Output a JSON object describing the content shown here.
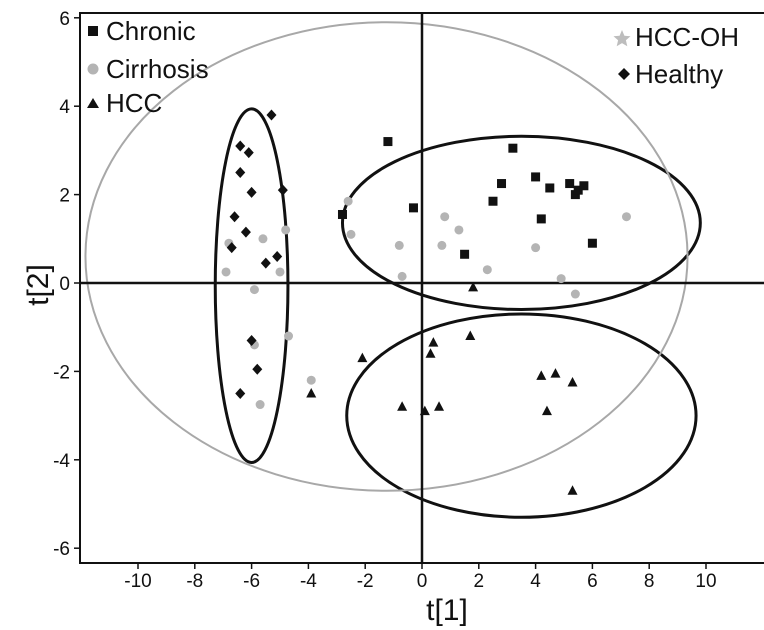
{
  "chart_data": {
    "type": "scatter",
    "title": "",
    "xlabel": "t[1]",
    "ylabel": "t[2]",
    "xlim": [
      -12,
      12
    ],
    "ylim": [
      -6.2,
      6.2
    ],
    "x_ticks": [
      -10,
      -8,
      -6,
      -4,
      -2,
      0,
      2,
      4,
      6,
      8,
      10
    ],
    "y_ticks": [
      -6,
      -4,
      -2,
      0,
      2,
      4,
      6
    ],
    "grid": false,
    "legend_left": [
      "Chronic",
      "Cirrhosis",
      "HCC"
    ],
    "legend_right": [
      "HCC-OH",
      "Healthy"
    ],
    "series": [
      {
        "name": "Chronic",
        "marker": "square",
        "color": "#111111",
        "points": [
          [
            -1.2,
            3.2
          ],
          [
            -2.8,
            1.55
          ],
          [
            -0.3,
            1.7
          ],
          [
            1.5,
            0.65
          ],
          [
            2.8,
            2.25
          ],
          [
            2.5,
            1.85
          ],
          [
            3.2,
            3.05
          ],
          [
            4.0,
            2.4
          ],
          [
            4.2,
            1.45
          ],
          [
            4.5,
            2.15
          ],
          [
            5.2,
            2.25
          ],
          [
            5.4,
            2.0
          ],
          [
            5.5,
            2.1
          ],
          [
            5.7,
            2.2
          ],
          [
            6.0,
            0.9
          ]
        ]
      },
      {
        "name": "Cirrhosis",
        "marker": "circle",
        "color": "#b4b4b4",
        "points": [
          [
            -6.8,
            0.9
          ],
          [
            -6.9,
            0.25
          ],
          [
            -5.6,
            1.0
          ],
          [
            -5.9,
            -0.15
          ],
          [
            -5.0,
            0.25
          ],
          [
            -4.8,
            1.2
          ],
          [
            -4.7,
            -1.2
          ],
          [
            -5.9,
            -1.4
          ],
          [
            -5.7,
            -2.75
          ],
          [
            -3.9,
            -2.2
          ],
          [
            -2.6,
            1.85
          ],
          [
            -2.5,
            1.1
          ],
          [
            -0.8,
            0.85
          ],
          [
            -0.7,
            0.15
          ],
          [
            0.7,
            0.85
          ],
          [
            0.8,
            1.5
          ],
          [
            1.3,
            1.2
          ],
          [
            2.3,
            0.3
          ],
          [
            4.0,
            0.8
          ],
          [
            4.9,
            0.1
          ],
          [
            5.4,
            -0.25
          ],
          [
            7.2,
            1.5
          ]
        ]
      },
      {
        "name": "HCC",
        "marker": "triangle",
        "color": "#111111",
        "points": [
          [
            -3.9,
            -2.5
          ],
          [
            -2.1,
            -1.7
          ],
          [
            -0.7,
            -2.8
          ],
          [
            0.1,
            -2.9
          ],
          [
            0.3,
            -1.6
          ],
          [
            0.4,
            -1.35
          ],
          [
            0.6,
            -2.8
          ],
          [
            1.7,
            -1.2
          ],
          [
            1.8,
            -0.1
          ],
          [
            4.2,
            -2.1
          ],
          [
            4.7,
            -2.05
          ],
          [
            4.4,
            -2.9
          ],
          [
            5.3,
            -2.25
          ],
          [
            5.3,
            -4.7
          ]
        ]
      },
      {
        "name": "Healthy",
        "marker": "diamond",
        "color": "#111111",
        "points": [
          [
            -5.3,
            3.8
          ],
          [
            -6.4,
            3.1
          ],
          [
            -6.1,
            2.95
          ],
          [
            -6.4,
            2.5
          ],
          [
            -6.0,
            2.05
          ],
          [
            -4.9,
            2.1
          ],
          [
            -6.6,
            1.5
          ],
          [
            -6.2,
            1.15
          ],
          [
            -6.7,
            0.8
          ],
          [
            -5.5,
            0.45
          ],
          [
            -5.1,
            0.6
          ],
          [
            -6.0,
            -1.3
          ],
          [
            -5.8,
            -1.95
          ],
          [
            -6.4,
            -2.5
          ]
        ]
      },
      {
        "name": "HCC-OH",
        "marker": "star",
        "color": "#bdbdbd",
        "points": []
      }
    ],
    "ellipses": [
      {
        "cx": -6.0,
        "cy": -0.06,
        "rx": 1.28,
        "ry": 4.0,
        "color": "#111111"
      },
      {
        "cx": 3.5,
        "cy": 1.36,
        "rx": 6.3,
        "ry": 1.96,
        "color": "#111111"
      },
      {
        "cx": 3.5,
        "cy": -3.0,
        "rx": 6.15,
        "ry": 2.3,
        "color": "#111111"
      },
      {
        "cx": -1.25,
        "cy": 0.6,
        "rx": 10.6,
        "ry": 5.3,
        "color": "#a8a8a8"
      }
    ]
  }
}
